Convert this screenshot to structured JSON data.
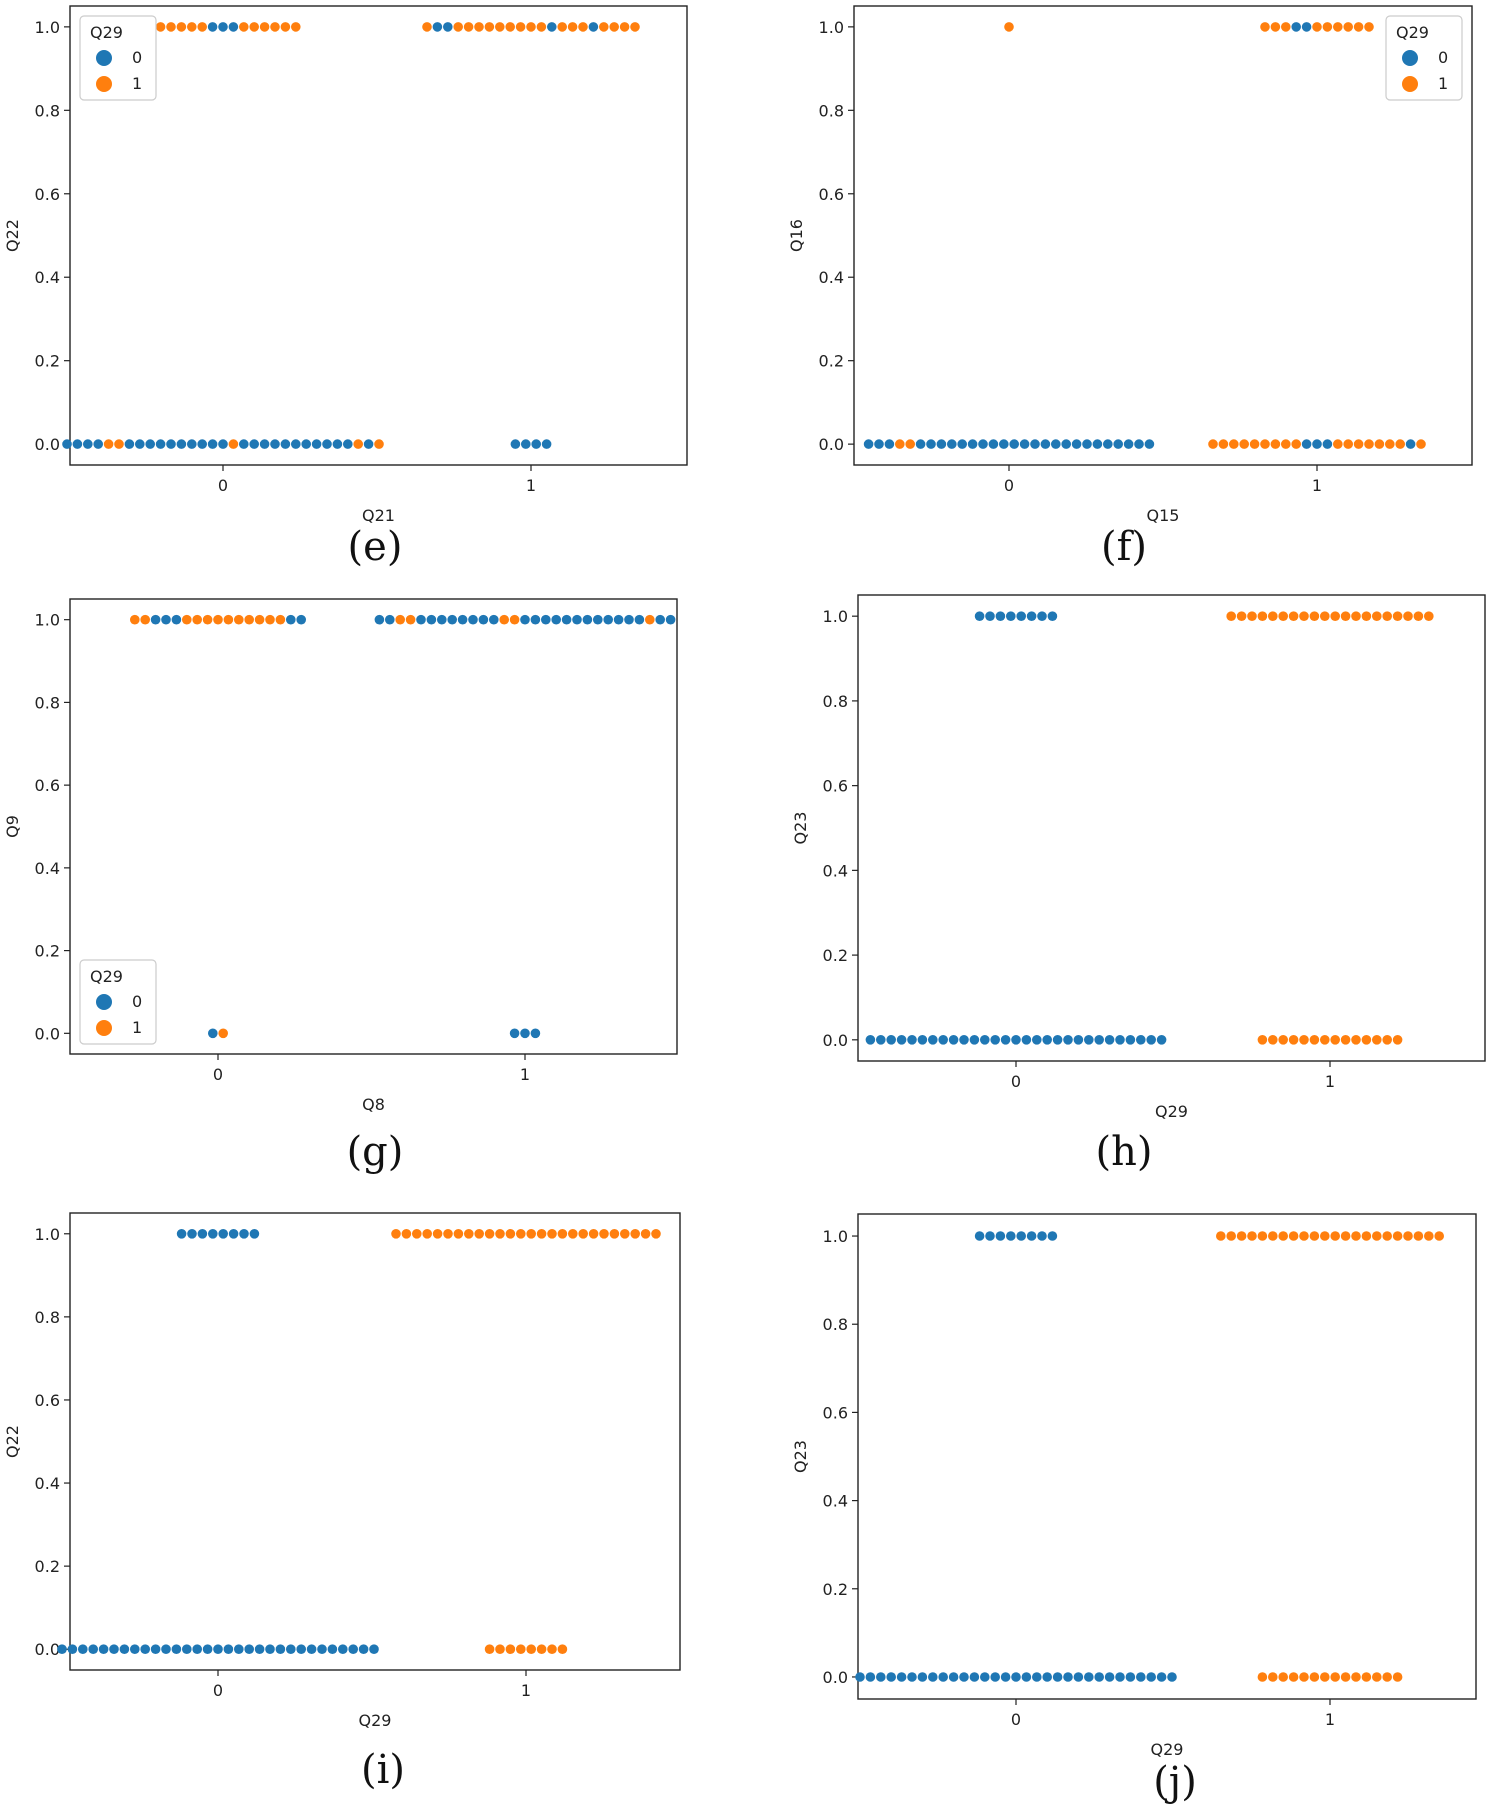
{
  "colors": {
    "class0": "#1f77b4",
    "class1": "#ff7f0e",
    "axis": "#222222",
    "legend_border": "#cccccc"
  },
  "chart_data": [
    {
      "id": "e",
      "type": "scatter",
      "caption": "(e)",
      "xlabel": "Q21",
      "ylabel": "Q22",
      "categories": [
        "0",
        "1"
      ],
      "yticks": [
        "0.0",
        "0.2",
        "0.4",
        "0.6",
        "0.8",
        "1.0"
      ],
      "ylim": [
        0,
        1
      ],
      "legend": {
        "title": "Q29",
        "labels": [
          "0",
          "1"
        ],
        "placement": "top-left"
      },
      "groups": [
        {
          "x": "0",
          "y": 1,
          "points": [
            1,
            1,
            1,
            1,
            1,
            1,
            0,
            0,
            0,
            1,
            1,
            1,
            1,
            1,
            1
          ]
        },
        {
          "x": "0",
          "y": 0,
          "points": [
            0,
            0,
            0,
            0,
            1,
            1,
            0,
            0,
            0,
            0,
            0,
            0,
            0,
            0,
            0,
            0,
            1,
            0,
            0,
            0,
            0,
            0,
            0,
            0,
            0,
            0,
            0,
            0,
            1,
            0,
            1
          ]
        },
        {
          "x": "1",
          "y": 1,
          "points": [
            1,
            0,
            0,
            1,
            1,
            1,
            1,
            1,
            1,
            1,
            1,
            1,
            0,
            1,
            1,
            1,
            0,
            1,
            1,
            1,
            1
          ]
        },
        {
          "x": "1",
          "y": 0,
          "points": [
            0,
            0,
            0,
            0
          ]
        }
      ]
    },
    {
      "id": "f",
      "type": "scatter",
      "caption": "(f)",
      "xlabel": "Q15",
      "ylabel": "Q16",
      "categories": [
        "0",
        "1"
      ],
      "yticks": [
        "0.0",
        "0.2",
        "0.4",
        "0.6",
        "0.8",
        "1.0"
      ],
      "ylim": [
        0,
        1
      ],
      "legend": {
        "title": "Q29",
        "labels": [
          "0",
          "1"
        ],
        "placement": "top-right"
      },
      "groups": [
        {
          "x": "0",
          "y": 1,
          "points": [
            1
          ]
        },
        {
          "x": "0",
          "y": 0,
          "points": [
            0,
            0,
            0,
            1,
            1,
            0,
            0,
            0,
            0,
            0,
            0,
            0,
            0,
            0,
            0,
            0,
            0,
            0,
            0,
            0,
            0,
            0,
            0,
            0,
            0,
            0,
            0,
            0
          ]
        },
        {
          "x": "1",
          "y": 1,
          "points": [
            1,
            1,
            1,
            0,
            0,
            1,
            1,
            1,
            1,
            1,
            1
          ]
        },
        {
          "x": "1",
          "y": 0,
          "points": [
            1,
            1,
            1,
            1,
            1,
            1,
            1,
            1,
            1,
            0,
            0,
            0,
            1,
            1,
            1,
            1,
            1,
            1,
            1,
            0,
            1
          ]
        }
      ]
    },
    {
      "id": "g",
      "type": "scatter",
      "caption": "(g)",
      "xlabel": "Q8",
      "ylabel": "Q9",
      "categories": [
        "0",
        "1"
      ],
      "yticks": [
        "0.0",
        "0.2",
        "0.4",
        "0.6",
        "0.8",
        "1.0"
      ],
      "ylim": [
        0,
        1
      ],
      "legend": {
        "title": "Q29",
        "labels": [
          "0",
          "1"
        ],
        "placement": "bottom-left"
      },
      "groups": [
        {
          "x": "0",
          "y": 1,
          "points": [
            1,
            1,
            0,
            0,
            0,
            1,
            1,
            1,
            1,
            1,
            1,
            1,
            1,
            1,
            1,
            0,
            0
          ]
        },
        {
          "x": "0",
          "y": 0,
          "points": [
            0,
            1
          ]
        },
        {
          "x": "1",
          "y": 1,
          "points": [
            0,
            0,
            1,
            1,
            0,
            0,
            0,
            0,
            0,
            0,
            0,
            0,
            1,
            1,
            0,
            0,
            0,
            0,
            0,
            0,
            0,
            0,
            0,
            0,
            0,
            0,
            1,
            0,
            0
          ]
        },
        {
          "x": "1",
          "y": 0,
          "points": [
            0,
            0,
            0
          ]
        }
      ]
    },
    {
      "id": "h",
      "type": "scatter",
      "caption": "(h)",
      "xlabel": "Q29",
      "ylabel": "Q23",
      "categories": [
        "0",
        "1"
      ],
      "yticks": [
        "0.0",
        "0.2",
        "0.4",
        "0.6",
        "0.8",
        "1.0"
      ],
      "ylim": [
        0,
        1
      ],
      "legend": null,
      "groups": [
        {
          "x": "0",
          "y": 1,
          "points": [
            0,
            0,
            0,
            0,
            0,
            0,
            0,
            0
          ]
        },
        {
          "x": "0",
          "y": 0,
          "points": [
            0,
            0,
            0,
            0,
            0,
            0,
            0,
            0,
            0,
            0,
            0,
            0,
            0,
            0,
            0,
            0,
            0,
            0,
            0,
            0,
            0,
            0,
            0,
            0,
            0,
            0,
            0,
            0,
            0
          ]
        },
        {
          "x": "1",
          "y": 1,
          "points": [
            1,
            1,
            1,
            1,
            1,
            1,
            1,
            1,
            1,
            1,
            1,
            1,
            1,
            1,
            1,
            1,
            1,
            1,
            1,
            1
          ]
        },
        {
          "x": "1",
          "y": 0,
          "points": [
            1,
            1,
            1,
            1,
            1,
            1,
            1,
            1,
            1,
            1,
            1,
            1,
            1,
            1
          ]
        }
      ]
    },
    {
      "id": "i",
      "type": "scatter",
      "caption": "(i)",
      "xlabel": "Q29",
      "ylabel": "Q22",
      "categories": [
        "0",
        "1"
      ],
      "yticks": [
        "0.0",
        "0.2",
        "0.4",
        "0.6",
        "0.8",
        "1.0"
      ],
      "ylim": [
        0,
        1
      ],
      "legend": null,
      "groups": [
        {
          "x": "0",
          "y": 1,
          "points": [
            0,
            0,
            0,
            0,
            0,
            0,
            0,
            0
          ]
        },
        {
          "x": "0",
          "y": 0,
          "points": [
            0,
            0,
            0,
            0,
            0,
            0,
            0,
            0,
            0,
            0,
            0,
            0,
            0,
            0,
            0,
            0,
            0,
            0,
            0,
            0,
            0,
            0,
            0,
            0,
            0,
            0,
            0,
            0,
            0,
            0,
            0
          ]
        },
        {
          "x": "1",
          "y": 1,
          "points": [
            1,
            1,
            1,
            1,
            1,
            1,
            1,
            1,
            1,
            1,
            1,
            1,
            1,
            1,
            1,
            1,
            1,
            1,
            1,
            1,
            1,
            1,
            1,
            1,
            1,
            1
          ]
        },
        {
          "x": "1",
          "y": 0,
          "points": [
            1,
            1,
            1,
            1,
            1,
            1,
            1,
            1
          ]
        }
      ]
    },
    {
      "id": "j",
      "type": "scatter",
      "caption": "(j)",
      "xlabel": "Q29",
      "ylabel": "Q23",
      "categories": [
        "0",
        "1"
      ],
      "yticks": [
        "0.0",
        "0.2",
        "0.4",
        "0.6",
        "0.8",
        "1.0"
      ],
      "ylim": [
        0,
        1
      ],
      "legend": null,
      "groups": [
        {
          "x": "0",
          "y": 1,
          "points": [
            0,
            0,
            0,
            0,
            0,
            0,
            0,
            0
          ]
        },
        {
          "x": "0",
          "y": 0,
          "points": [
            0,
            0,
            0,
            0,
            0,
            0,
            0,
            0,
            0,
            0,
            0,
            0,
            0,
            0,
            0,
            0,
            0,
            0,
            0,
            0,
            0,
            0,
            0,
            0,
            0,
            0,
            0,
            0,
            0,
            0,
            0
          ]
        },
        {
          "x": "1",
          "y": 1,
          "points": [
            1,
            1,
            1,
            1,
            1,
            1,
            1,
            1,
            1,
            1,
            1,
            1,
            1,
            1,
            1,
            1,
            1,
            1,
            1,
            1,
            1,
            1
          ]
        },
        {
          "x": "1",
          "y": 0,
          "points": [
            1,
            1,
            1,
            1,
            1,
            1,
            1,
            1,
            1,
            1,
            1,
            1,
            1,
            1
          ]
        }
      ]
    }
  ]
}
